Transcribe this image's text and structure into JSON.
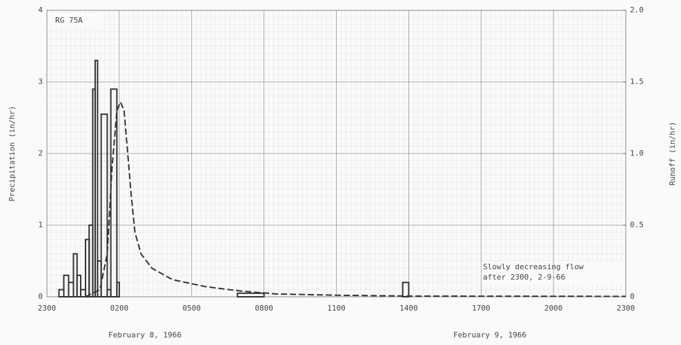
{
  "chart_data": {
    "type": "histogram",
    "station": "RG 75A",
    "ylabel": "Precipitation (in/hr)",
    "y2label": "Runoff (in/hr)",
    "date_labels": [
      "February 8, 1966",
      "February 9, 1966"
    ],
    "annotation": [
      "Slowly decreasing flow",
      "after 2300, 2-9-66"
    ],
    "xlim": [
      0,
      24
    ],
    "xticks": [
      {
        "value": 0,
        "label": "2300"
      },
      {
        "value": 3,
        "label": "0200"
      },
      {
        "value": 6,
        "label": "0500"
      },
      {
        "value": 9,
        "label": "0800"
      },
      {
        "value": 12,
        "label": "1100"
      },
      {
        "value": 15,
        "label": "1400"
      },
      {
        "value": 18,
        "label": "1700"
      },
      {
        "value": 21,
        "label": "2000"
      },
      {
        "value": 24,
        "label": "2300"
      }
    ],
    "ylim": [
      0,
      4
    ],
    "yticks": [
      0,
      1,
      2,
      3,
      4
    ],
    "y2lim": [
      0,
      2
    ],
    "y2ticks": [
      0,
      0.5,
      {
        "value": 1,
        "label": "1.0"
      },
      1.5,
      {
        "value": 2,
        "label": "2.0"
      }
    ],
    "grid": true,
    "color": "#333333",
    "bins": [
      0.5,
      0.7,
      0.9,
      1.1,
      1.25,
      1.4,
      1.6,
      1.75,
      1.9,
      2.0,
      2.1,
      2.25,
      2.5,
      2.65,
      2.9,
      3.0,
      7.9,
      9.0,
      14.75,
      15.0
    ],
    "values": [
      0.1,
      0.3,
      0.2,
      0.6,
      0.3,
      0.1,
      0.8,
      1.0,
      2.9,
      3.3,
      0.5,
      2.55,
      0.1,
      2.9,
      0.2,
      0,
      0.05,
      0,
      0.2
    ],
    "runoff": {
      "type": "line",
      "axis": "y2",
      "dashed": true,
      "color": "#333333",
      "x": [
        1.6,
        2.2,
        2.5,
        2.7,
        2.9,
        3.05,
        3.2,
        3.35,
        3.5,
        3.65,
        3.9,
        4.35,
        5.2,
        6.6,
        8.05,
        9.5,
        12.3,
        15.2,
        24
      ],
      "values": [
        0,
        0.05,
        0.3,
        0.9,
        1.3,
        1.36,
        1.3,
        1.0,
        0.7,
        0.45,
        0.3,
        0.2,
        0.12,
        0.07,
        0.04,
        0.02,
        0.01,
        0.005,
        0.003
      ]
    }
  }
}
